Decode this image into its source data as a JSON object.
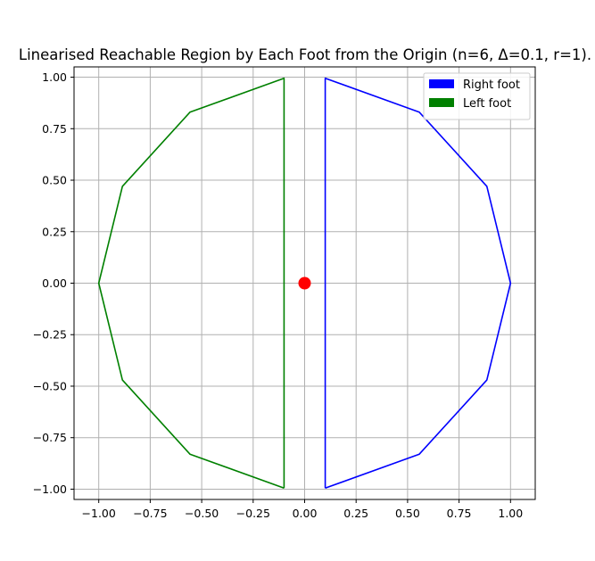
{
  "chart_data": {
    "type": "line",
    "title": "Linearised Reachable Region by Each Foot from the Origin (n=6, Δ=0.1, r=1).",
    "xlabel": "",
    "ylabel": "",
    "xlim": [
      -1.12,
      1.12
    ],
    "ylim": [
      -1.05,
      1.05
    ],
    "xticks": [
      -1.0,
      -0.75,
      -0.5,
      -0.25,
      0.0,
      0.25,
      0.5,
      0.75,
      1.0
    ],
    "xtick_labels": [
      "−1.00",
      "−0.75",
      "−0.50",
      "−0.25",
      "0.00",
      "0.25",
      "0.50",
      "0.75",
      "1.00"
    ],
    "yticks": [
      1.0,
      0.75,
      0.5,
      0.25,
      0.0,
      -0.25,
      -0.5,
      -0.75,
      -1.0
    ],
    "ytick_labels": [
      "1.00",
      "0.75",
      "0.50",
      "0.25",
      "0.00",
      "−0.25",
      "−0.50",
      "−0.75",
      "−1.00"
    ],
    "grid": true,
    "legend_position": "top-right",
    "series": [
      {
        "name": "Right foot",
        "color": "#0000ff",
        "points": [
          [
            0.1,
            -0.995
          ],
          [
            0.1,
            0.995
          ],
          [
            0.557,
            0.83
          ],
          [
            0.885,
            0.47
          ],
          [
            1.0,
            0.0
          ],
          [
            0.885,
            -0.47
          ],
          [
            0.557,
            -0.83
          ],
          [
            0.1,
            -0.995
          ]
        ]
      },
      {
        "name": "Left foot",
        "color": "#008000",
        "points": [
          [
            -0.1,
            -0.995
          ],
          [
            -0.1,
            0.995
          ],
          [
            -0.557,
            0.83
          ],
          [
            -0.885,
            0.47
          ],
          [
            -1.0,
            0.0
          ],
          [
            -0.885,
            -0.47
          ],
          [
            -0.557,
            -0.83
          ],
          [
            -0.1,
            -0.995
          ]
        ]
      }
    ],
    "markers": [
      {
        "x": 0.0,
        "y": 0.0,
        "color": "#ff0000"
      }
    ]
  }
}
